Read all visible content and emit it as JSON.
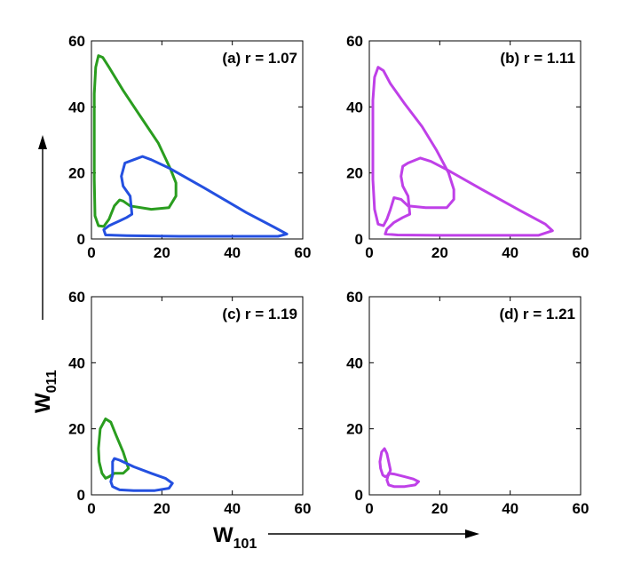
{
  "figure": {
    "xlabel": "W",
    "xlabel_sub": "101",
    "ylabel": "W",
    "ylabel_sub": "011"
  },
  "colors": {
    "green": "#2a9d1f",
    "blue": "#2450e0",
    "magenta": "#bf40e8"
  },
  "chart_data": [
    {
      "type": "line",
      "id": "a",
      "annotation": "(a) r = 1.07",
      "xlim": [
        0,
        60
      ],
      "ylim": [
        0,
        60
      ],
      "xticks": [
        0,
        20,
        40,
        60
      ],
      "yticks": [
        0,
        20,
        40,
        60
      ],
      "series": [
        {
          "color": "green",
          "points": [
            [
              0.8,
              28
            ],
            [
              0.8,
              44
            ],
            [
              1.2,
              52
            ],
            [
              2,
              55.5
            ],
            [
              3.2,
              55
            ],
            [
              5,
              52
            ],
            [
              9,
              45
            ],
            [
              14,
              37
            ],
            [
              19,
              29
            ],
            [
              22.5,
              21
            ],
            [
              24,
              17
            ],
            [
              24,
              13
            ],
            [
              22,
              9.5
            ],
            [
              17,
              9
            ],
            [
              11,
              10
            ],
            [
              9,
              11.5
            ],
            [
              8,
              11.8
            ],
            [
              6.5,
              10
            ],
            [
              5,
              6
            ],
            [
              3.5,
              3.8
            ],
            [
              2,
              4
            ],
            [
              1,
              7
            ],
            [
              0.8,
              18
            ],
            [
              0.8,
              28
            ]
          ]
        },
        {
          "color": "blue",
          "points": [
            [
              12,
              24
            ],
            [
              14.5,
              25
            ],
            [
              17,
              24
            ],
            [
              22,
              21.5
            ],
            [
              32,
              15.5
            ],
            [
              44,
              8
            ],
            [
              52,
              3.5
            ],
            [
              55.5,
              1.5
            ],
            [
              53,
              0.8
            ],
            [
              40,
              0.8
            ],
            [
              25,
              0.8
            ],
            [
              10,
              1
            ],
            [
              4,
              1.2
            ],
            [
              3.5,
              2.8
            ],
            [
              5,
              4
            ],
            [
              8,
              5.5
            ],
            [
              10,
              6.5
            ],
            [
              11.5,
              7.5
            ],
            [
              11,
              13
            ],
            [
              9,
              16
            ],
            [
              8.5,
              19
            ],
            [
              9.5,
              23
            ],
            [
              12,
              24
            ]
          ]
        }
      ]
    },
    {
      "type": "line",
      "id": "b",
      "annotation": "(b) r = 1.11",
      "xlim": [
        0,
        60
      ],
      "ylim": [
        0,
        60
      ],
      "xticks": [
        0,
        20,
        40,
        60
      ],
      "yticks": [
        0,
        20,
        40,
        60
      ],
      "series": [
        {
          "color": "magenta",
          "points": [
            [
              1,
              26
            ],
            [
              1,
              42
            ],
            [
              1.5,
              49
            ],
            [
              2.5,
              52
            ],
            [
              4,
              51
            ],
            [
              6,
              47
            ],
            [
              10,
              41
            ],
            [
              15,
              34
            ],
            [
              19,
              27
            ],
            [
              22.5,
              20
            ],
            [
              24,
              15
            ],
            [
              24,
              12
            ],
            [
              22,
              9.5
            ],
            [
              16,
              9.5
            ],
            [
              11,
              10
            ],
            [
              9,
              12
            ],
            [
              7,
              12.5
            ],
            [
              6,
              9
            ],
            [
              5,
              6
            ],
            [
              4,
              4
            ],
            [
              2.5,
              4.5
            ],
            [
              1.5,
              9
            ],
            [
              1,
              18
            ],
            [
              1,
              26
            ]
          ]
        },
        {
          "color": "magenta",
          "points": [
            [
              11,
              23
            ],
            [
              14.5,
              24.5
            ],
            [
              17.5,
              23.5
            ],
            [
              22,
              21
            ],
            [
              32,
              15
            ],
            [
              43,
              8.5
            ],
            [
              50,
              4.5
            ],
            [
              52,
              2.5
            ],
            [
              48,
              1.1
            ],
            [
              35,
              1.1
            ],
            [
              20,
              1.1
            ],
            [
              8,
              1.2
            ],
            [
              4.5,
              1.5
            ],
            [
              5,
              3
            ],
            [
              7,
              5
            ],
            [
              9.5,
              6.5
            ],
            [
              11.5,
              7.5
            ],
            [
              11,
              13
            ],
            [
              9.5,
              16
            ],
            [
              9,
              19
            ],
            [
              9.5,
              22
            ],
            [
              11,
              23
            ]
          ]
        }
      ]
    },
    {
      "type": "line",
      "id": "c",
      "annotation": "(c) r = 1.19",
      "xlim": [
        0,
        60
      ],
      "ylim": [
        0,
        60
      ],
      "xticks": [
        0,
        20,
        40,
        60
      ],
      "yticks": [
        0,
        20,
        40,
        60
      ],
      "series": [
        {
          "color": "green",
          "points": [
            [
              2,
              14
            ],
            [
              2.5,
              20
            ],
            [
              4,
              23
            ],
            [
              5.5,
              22
            ],
            [
              7,
              18
            ],
            [
              9,
              13
            ],
            [
              10.5,
              8
            ],
            [
              9,
              6.5
            ],
            [
              6.5,
              6.5
            ],
            [
              5,
              5.5
            ],
            [
              4,
              5
            ],
            [
              3,
              6.5
            ],
            [
              2.2,
              10
            ],
            [
              2,
              14
            ]
          ]
        },
        {
          "color": "blue",
          "points": [
            [
              6,
              10
            ],
            [
              6.5,
              11
            ],
            [
              8,
              10.5
            ],
            [
              12,
              8.5
            ],
            [
              17,
              6.5
            ],
            [
              21,
              5
            ],
            [
              23,
              3.5
            ],
            [
              22,
              2
            ],
            [
              18,
              1.3
            ],
            [
              12,
              1.3
            ],
            [
              8,
              1.5
            ],
            [
              6,
              2.5
            ],
            [
              5.5,
              4
            ],
            [
              6,
              6
            ],
            [
              6,
              10
            ]
          ]
        }
      ]
    },
    {
      "type": "line",
      "id": "d",
      "annotation": "(d) r = 1.21",
      "xlim": [
        0,
        60
      ],
      "ylim": [
        0,
        60
      ],
      "xticks": [
        0,
        20,
        40,
        60
      ],
      "yticks": [
        0,
        20,
        40,
        60
      ],
      "series": [
        {
          "color": "magenta",
          "points": [
            [
              3,
              10
            ],
            [
              3.5,
              13
            ],
            [
              4.3,
              14
            ],
            [
              5,
              12.5
            ],
            [
              5.5,
              10
            ],
            [
              6,
              7.5
            ],
            [
              5.5,
              6
            ],
            [
              4.5,
              5.5
            ],
            [
              3.8,
              6
            ],
            [
              3.2,
              8
            ],
            [
              3,
              10
            ]
          ]
        },
        {
          "color": "magenta",
          "points": [
            [
              5.5,
              6.5
            ],
            [
              7,
              6.3
            ],
            [
              10,
              5.5
            ],
            [
              12.5,
              4.8
            ],
            [
              14,
              4
            ],
            [
              13,
              3
            ],
            [
              10,
              2.5
            ],
            [
              7,
              2.5
            ],
            [
              5.5,
              3
            ],
            [
              5,
              4.5
            ],
            [
              5.5,
              6.5
            ]
          ]
        }
      ]
    }
  ]
}
